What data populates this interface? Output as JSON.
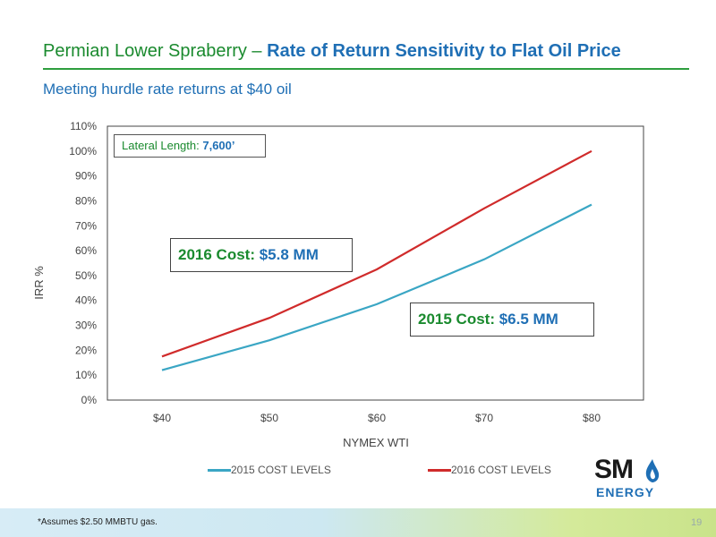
{
  "header": {
    "title_part1": "Permian Lower Spraberry",
    "title_sep": " – ",
    "title_part2": "Rate of Return Sensitivity to Flat Oil Price",
    "subtitle": "Meeting hurdle rate returns at $40 oil"
  },
  "annotations": {
    "lateral_label": "Lateral Length: ",
    "lateral_value": "7,600’",
    "cost_2016_label": "2016 Cost",
    "cost_2016_colon": ": ",
    "cost_2016_value": "$5.8 MM",
    "cost_2015_label": "2015 Cost: ",
    "cost_2015_value": "$6.5 MM"
  },
  "footer": {
    "footnote": "*Assumes $2.50 MMBTU gas.",
    "page_number": "19",
    "logo_top": "SM",
    "logo_bottom": "ENERGY"
  },
  "colors": {
    "series_2015": "#3aa6c4",
    "series_2016": "#d02b2b",
    "title_green": "#1a8a2e",
    "title_blue": "#1f6fb5"
  },
  "chart_data": {
    "type": "line",
    "categories": [
      "$40",
      "$50",
      "$60",
      "$70",
      "$80"
    ],
    "series": [
      {
        "name": "2015 COST LEVELS",
        "values": [
          12,
          24,
          38.5,
          56.5,
          78.5
        ]
      },
      {
        "name": "2016 COST LEVELS",
        "values": [
          17.5,
          33,
          52.5,
          77,
          100
        ]
      }
    ],
    "ylim": [
      0,
      110
    ],
    "yticks": [
      0,
      10,
      20,
      30,
      40,
      50,
      60,
      70,
      80,
      90,
      100,
      110
    ],
    "ytick_suffix": "%",
    "xlabel": "NYMEX WTI",
    "ylabel": "IRR %",
    "grid": false,
    "legend": "bottom"
  }
}
